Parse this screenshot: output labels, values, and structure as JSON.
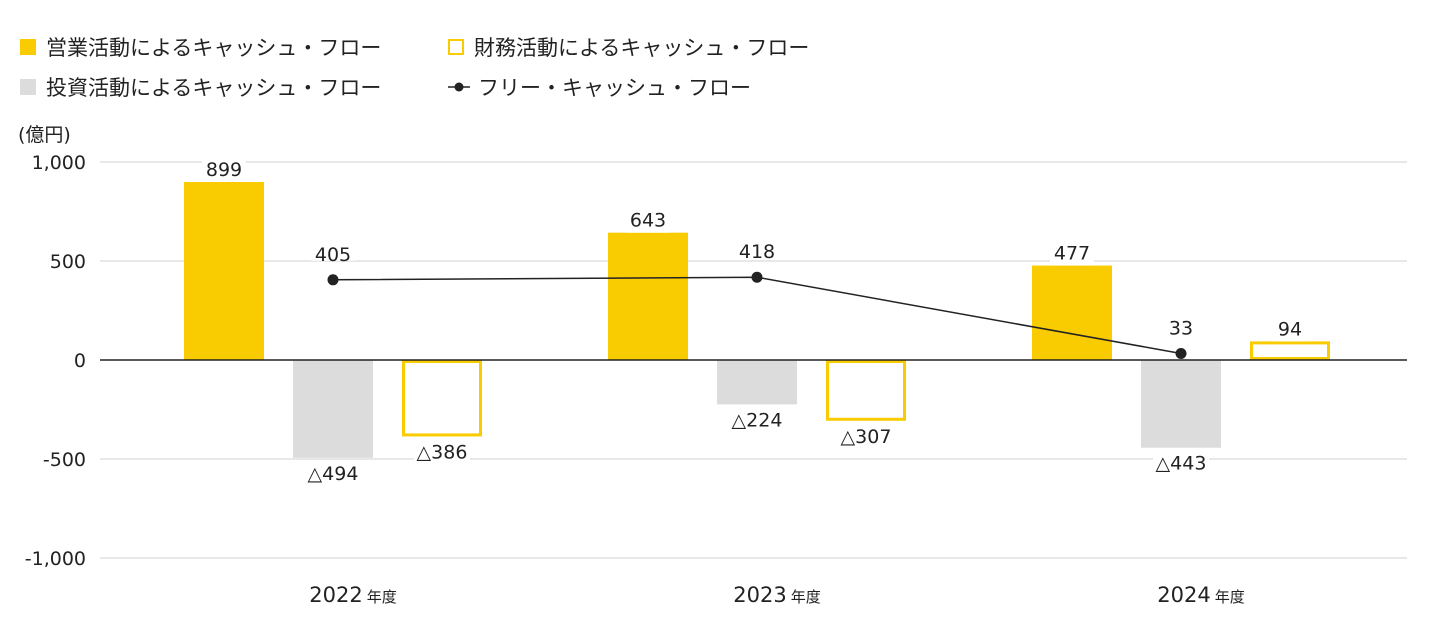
{
  "legend": {
    "operating": "営業活動によるキャッシュ・フロー",
    "financing": "財務活動によるキャッシュ・フロー",
    "investing": "投資活動によるキャッシュ・フロー",
    "free": "フリー・キャッシュ・フロー"
  },
  "colors": {
    "operating": "#f8cc00",
    "financing": "#f8cc00",
    "investing": "#dcdcdc",
    "free": "#222222",
    "grid": "#d0d0d0",
    "zero": "#222222"
  },
  "chart_data": {
    "type": "bar",
    "unit": "(億円)",
    "categories": [
      "2022",
      "2023",
      "2024"
    ],
    "category_suffix": "年度",
    "ylim": [
      -1000,
      1000
    ],
    "yticks": [
      1000,
      500,
      0,
      -500,
      -1000
    ],
    "ytick_labels": [
      "1,000",
      "500",
      "0",
      "-500",
      "-1,000"
    ],
    "grid": true,
    "legend_position": "top-left",
    "series": [
      {
        "name": "営業活動によるキャッシュ・フロー",
        "type": "bar",
        "style": "filled",
        "values": [
          899,
          643,
          477
        ],
        "labels": [
          "899",
          "643",
          "477"
        ]
      },
      {
        "name": "投資活動によるキャッシュ・フロー",
        "type": "bar",
        "style": "filled",
        "values": [
          -494,
          -224,
          -443
        ],
        "labels": [
          "△494",
          "△224",
          "△443"
        ]
      },
      {
        "name": "財務活動によるキャッシュ・フロー",
        "type": "bar",
        "style": "outline",
        "values": [
          -386,
          -307,
          94
        ],
        "labels": [
          "△386",
          "△307",
          "94"
        ]
      },
      {
        "name": "フリー・キャッシュ・フロー",
        "type": "line",
        "values": [
          405,
          418,
          33
        ],
        "labels": [
          "405",
          "418",
          "33"
        ]
      }
    ]
  }
}
